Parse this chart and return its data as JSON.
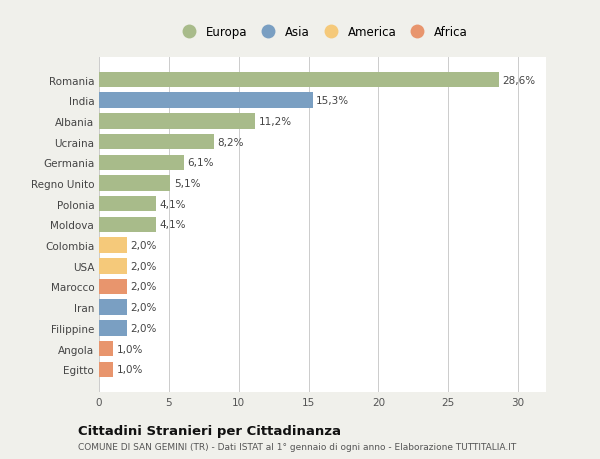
{
  "countries": [
    "Romania",
    "India",
    "Albania",
    "Ucraina",
    "Germania",
    "Regno Unito",
    "Polonia",
    "Moldova",
    "Colombia",
    "USA",
    "Marocco",
    "Iran",
    "Filippine",
    "Angola",
    "Egitto"
  ],
  "values": [
    28.6,
    15.3,
    11.2,
    8.2,
    6.1,
    5.1,
    4.1,
    4.1,
    2.0,
    2.0,
    2.0,
    2.0,
    2.0,
    1.0,
    1.0
  ],
  "labels": [
    "28,6%",
    "15,3%",
    "11,2%",
    "8,2%",
    "6,1%",
    "5,1%",
    "4,1%",
    "4,1%",
    "2,0%",
    "2,0%",
    "2,0%",
    "2,0%",
    "2,0%",
    "1,0%",
    "1,0%"
  ],
  "colors": [
    "#a8bb8a",
    "#7a9fc2",
    "#a8bb8a",
    "#a8bb8a",
    "#a8bb8a",
    "#a8bb8a",
    "#a8bb8a",
    "#a8bb8a",
    "#f5c97a",
    "#f5c97a",
    "#e8956d",
    "#7a9fc2",
    "#7a9fc2",
    "#e8956d",
    "#e8956d"
  ],
  "legend_labels": [
    "Europa",
    "Asia",
    "America",
    "Africa"
  ],
  "legend_colors": [
    "#a8bb8a",
    "#7a9fc2",
    "#f5c97a",
    "#e8956d"
  ],
  "xlim": [
    0,
    32
  ],
  "xticks": [
    0,
    5,
    10,
    15,
    20,
    25,
    30
  ],
  "title": "Cittadini Stranieri per Cittadinanza",
  "subtitle": "COMUNE DI SAN GEMINI (TR) - Dati ISTAT al 1° gennaio di ogni anno - Elaborazione TUTTITALIA.IT",
  "bg_color": "#f0f0eb",
  "bar_bg_color": "#ffffff"
}
